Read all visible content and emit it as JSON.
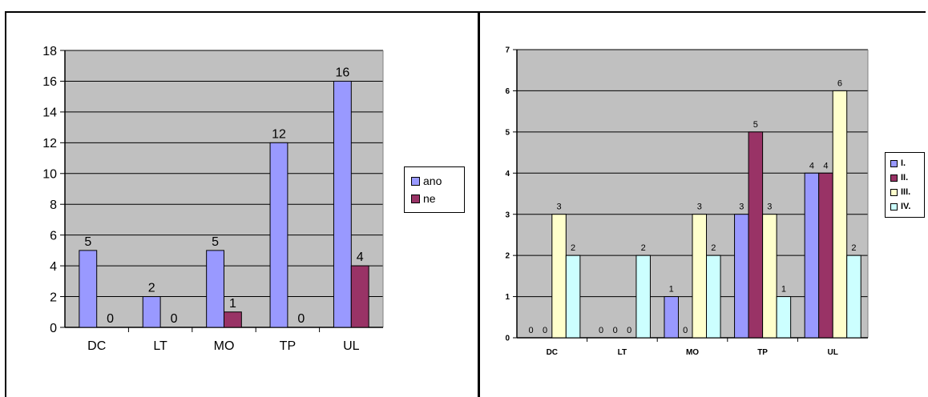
{
  "chart_data": [
    {
      "type": "bar",
      "categories": [
        "DC",
        "LT",
        "MO",
        "TP",
        "UL"
      ],
      "series": [
        {
          "name": "ano",
          "values": [
            5,
            2,
            5,
            12,
            16
          ],
          "color": "#9999ff"
        },
        {
          "name": "ne",
          "values": [
            0,
            0,
            1,
            0,
            4
          ],
          "color": "#993366"
        }
      ],
      "ylim": [
        0,
        18
      ],
      "yticks": [
        "0",
        "2",
        "4",
        "6",
        "8",
        "10",
        "12",
        "14",
        "16",
        "18"
      ],
      "plot_background": "#c0c0c0",
      "grid": true,
      "legend_position": "right"
    },
    {
      "type": "bar",
      "categories": [
        "DC",
        "LT",
        "MO",
        "TP",
        "UL"
      ],
      "series": [
        {
          "name": "I.",
          "values": [
            0,
            0,
            1,
            3,
            4
          ],
          "color": "#9999ff"
        },
        {
          "name": "II.",
          "values": [
            0,
            0,
            0,
            5,
            4
          ],
          "color": "#993366"
        },
        {
          "name": "III.",
          "values": [
            3,
            0,
            3,
            3,
            6
          ],
          "color": "#ffffcc"
        },
        {
          "name": "IV.",
          "values": [
            2,
            2,
            2,
            1,
            2
          ],
          "color": "#ccffff"
        }
      ],
      "ylim": [
        0,
        7
      ],
      "yticks": [
        "0",
        "1",
        "2",
        "3",
        "4",
        "5",
        "6",
        "7"
      ],
      "plot_background": "#c0c0c0",
      "grid": true,
      "legend_position": "right"
    }
  ]
}
